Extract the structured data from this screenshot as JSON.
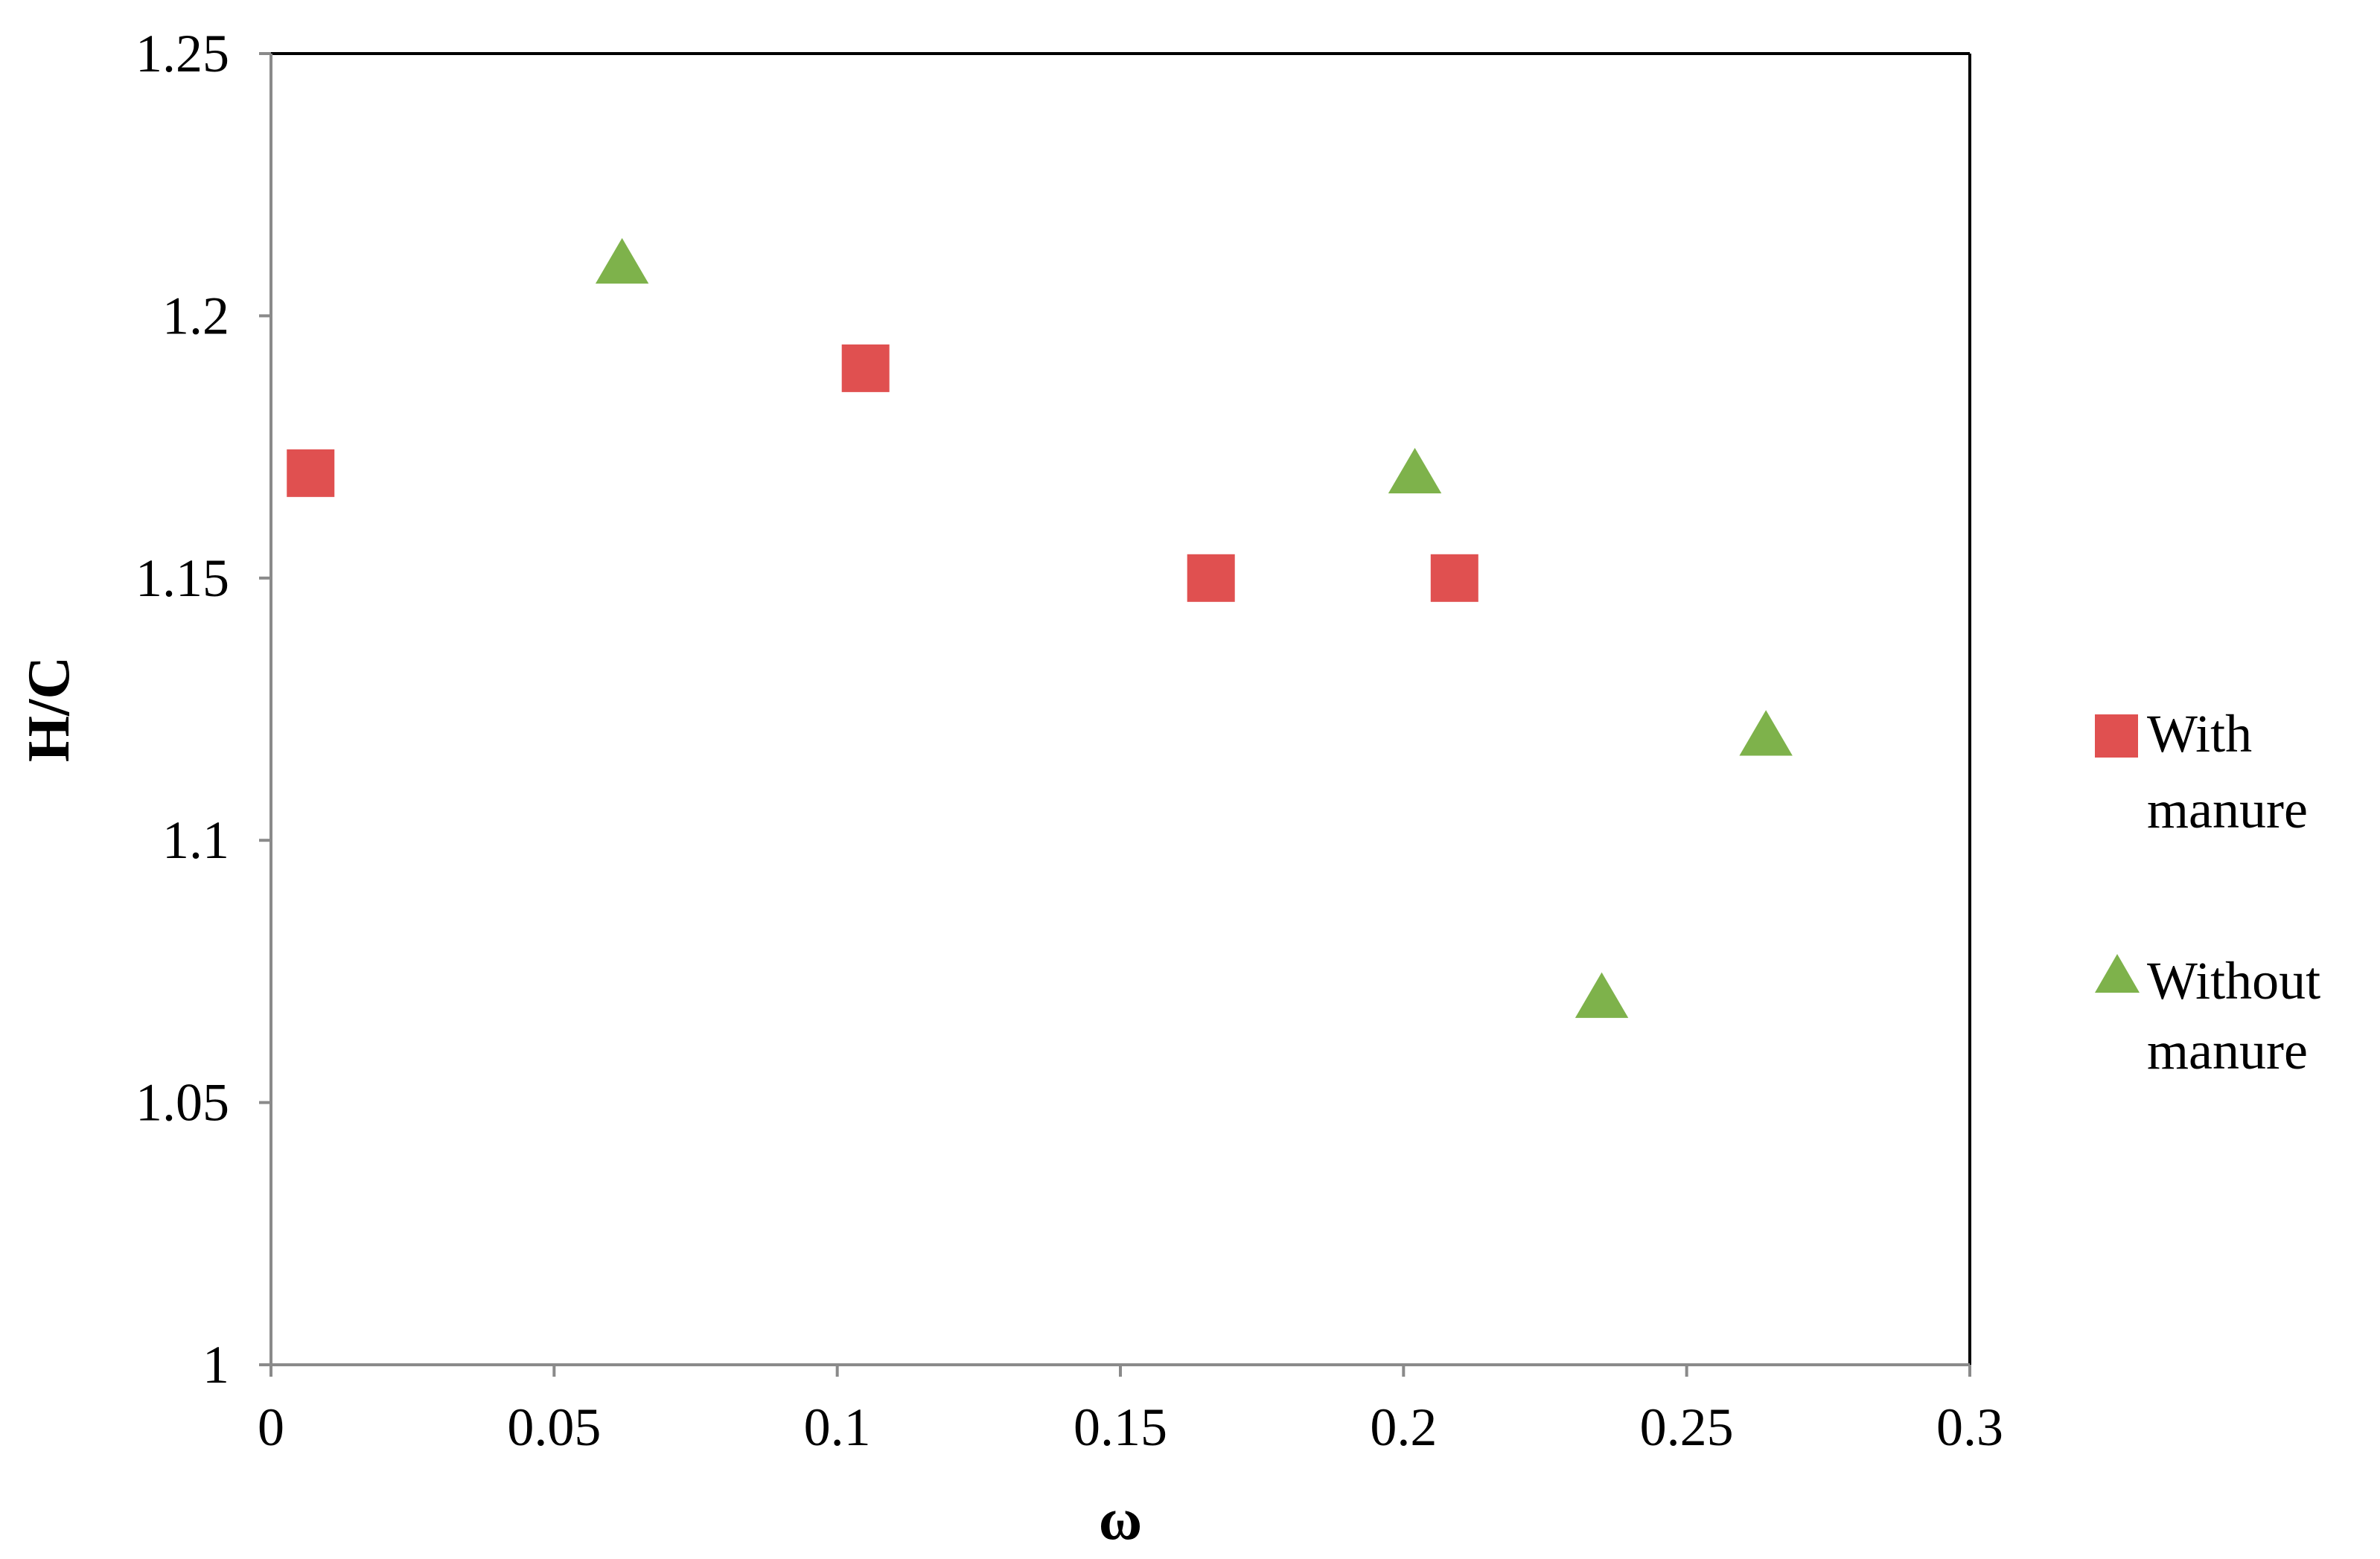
{
  "chart_data": {
    "type": "scatter",
    "title": "",
    "xlabel": "ω",
    "ylabel": "H/C",
    "xlim": [
      0,
      0.3
    ],
    "ylim": [
      1,
      1.25
    ],
    "xticks": [
      "0",
      "0.05",
      "0.1",
      "0.15",
      "0.2",
      "0.25",
      "0.3"
    ],
    "yticks": [
      "1",
      "1.05",
      "1.1",
      "1.15",
      "1.2",
      "1.25"
    ],
    "grid": false,
    "legend_position": "right",
    "series": [
      {
        "name": "With manure",
        "marker": "square",
        "color": "#E05050",
        "points": [
          {
            "x": 0.007,
            "y": 1.17
          },
          {
            "x": 0.105,
            "y": 1.19
          },
          {
            "x": 0.166,
            "y": 1.15
          },
          {
            "x": 0.209,
            "y": 1.15
          }
        ]
      },
      {
        "name": "Without manure",
        "marker": "triangle",
        "color": "#7EB24B",
        "points": [
          {
            "x": 0.062,
            "y": 1.21
          },
          {
            "x": 0.202,
            "y": 1.17
          },
          {
            "x": 0.264,
            "y": 1.12
          },
          {
            "x": 0.235,
            "y": 1.07
          }
        ]
      }
    ],
    "legend": {
      "entries": [
        {
          "lines": [
            "With",
            "manure"
          ]
        },
        {
          "lines": [
            "Without",
            "manure"
          ]
        }
      ]
    }
  }
}
